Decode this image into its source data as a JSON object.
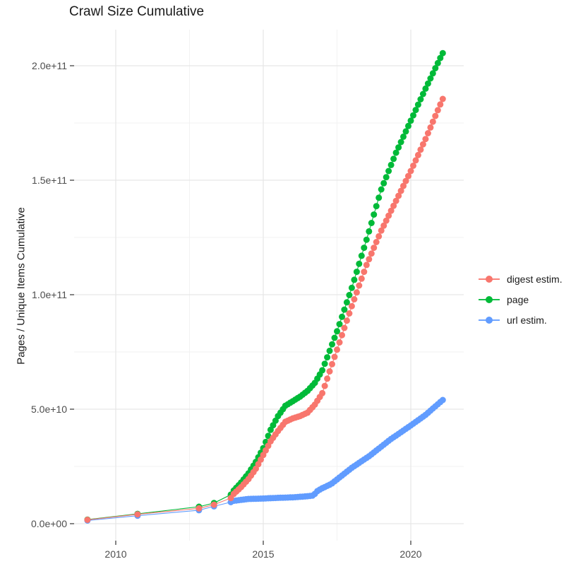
{
  "title": "Crawl Size Cumulative",
  "axes": {
    "y_label": "Pages / Unique Items Cumulative",
    "x_tick_labels": [
      "2010",
      "2015",
      "2020"
    ],
    "x_tick_years": [
      2010,
      2015,
      2020
    ],
    "x_minor_years": [
      2012.5,
      2017.5
    ],
    "y_tick_labels": [
      "0.0e+00",
      "5.0e+10",
      "1.0e+11",
      "1.5e+11",
      "2.0e+11"
    ],
    "y_tick_values_e9": [
      0,
      50,
      100,
      150,
      200
    ],
    "y_minor_values_e9": [
      25,
      75,
      125,
      175
    ]
  },
  "legend": {
    "items": [
      {
        "id": "digest",
        "label": "digest estim.",
        "color": "#F8766D"
      },
      {
        "id": "page",
        "label": "page",
        "color": "#00BA38"
      },
      {
        "id": "url",
        "label": "url estim.",
        "color": "#619CFF"
      }
    ]
  },
  "chart_data": {
    "type": "scatter",
    "title": "Crawl Size Cumulative",
    "xlabel": "",
    "ylabel": "Pages / Unique Items Cumulative",
    "x_unit": "year",
    "y_unit": "pages / unique items (cumulative count)",
    "xlim": [
      2008.6,
      2021.8
    ],
    "ylim": [
      -10000000000.0,
      215000000000.0
    ],
    "grid": true,
    "legend_position": "right",
    "marker": "filled-circle-with-line",
    "sampling": {
      "sparse_years": [
        2009.04,
        2010.74,
        2012.82,
        2013.33,
        2013.9
      ],
      "monthly_from": 2014.0,
      "monthly_to": 2021.085,
      "monthly_step_years": 0.0833333
    },
    "value_scale": "anchors give value in billions (1e9); e.g. 205.5 = 2.055e11",
    "series": [
      {
        "name": "digest estim.",
        "color": "#F8766D",
        "anchors_year_value_e9": [
          [
            2009.04,
            1.7
          ],
          [
            2010.74,
            4.1
          ],
          [
            2012.82,
            6.7
          ],
          [
            2013.33,
            8.3
          ],
          [
            2013.9,
            11.2
          ],
          [
            2014.0,
            13
          ],
          [
            2014.25,
            16
          ],
          [
            2014.5,
            19.5
          ],
          [
            2014.75,
            24
          ],
          [
            2015.0,
            30
          ],
          [
            2015.25,
            36
          ],
          [
            2015.5,
            40.5
          ],
          [
            2015.75,
            44.5
          ],
          [
            2016.0,
            46
          ],
          [
            2016.25,
            47
          ],
          [
            2016.5,
            48.5
          ],
          [
            2016.75,
            52
          ],
          [
            2017.0,
            57
          ],
          [
            2017.5,
            76
          ],
          [
            2018.0,
            95
          ],
          [
            2018.5,
            113
          ],
          [
            2019.0,
            128
          ],
          [
            2019.5,
            141
          ],
          [
            2020.0,
            154
          ],
          [
            2020.5,
            168
          ],
          [
            2021.08,
            185.5
          ]
        ]
      },
      {
        "name": "page",
        "color": "#00BA38",
        "anchors_year_value_e9": [
          [
            2009.04,
            1.8
          ],
          [
            2010.74,
            4.3
          ],
          [
            2012.82,
            7.4
          ],
          [
            2013.33,
            9.0
          ],
          [
            2013.9,
            12.7
          ],
          [
            2014.0,
            14.5
          ],
          [
            2014.25,
            18
          ],
          [
            2014.5,
            22
          ],
          [
            2014.75,
            27
          ],
          [
            2015.0,
            33
          ],
          [
            2015.25,
            41
          ],
          [
            2015.5,
            47
          ],
          [
            2015.75,
            51.5
          ],
          [
            2016.0,
            53.5
          ],
          [
            2016.25,
            55.5
          ],
          [
            2016.5,
            58
          ],
          [
            2016.75,
            61.5
          ],
          [
            2017.0,
            67
          ],
          [
            2017.5,
            84
          ],
          [
            2018.0,
            103
          ],
          [
            2018.5,
            124
          ],
          [
            2019.0,
            146
          ],
          [
            2019.5,
            162
          ],
          [
            2020.0,
            176
          ],
          [
            2020.5,
            190
          ],
          [
            2021.08,
            205.5
          ]
        ]
      },
      {
        "name": "url estim.",
        "color": "#619CFF",
        "anchors_year_value_e9": [
          [
            2009.04,
            1.4
          ],
          [
            2010.74,
            3.5
          ],
          [
            2012.82,
            5.9
          ],
          [
            2013.33,
            7.6
          ],
          [
            2013.9,
            9.4
          ],
          [
            2014.0,
            10
          ],
          [
            2014.5,
            10.8
          ],
          [
            2015.0,
            11
          ],
          [
            2015.5,
            11.3
          ],
          [
            2016.0,
            11.5
          ],
          [
            2016.5,
            12
          ],
          [
            2016.7,
            12.3
          ],
          [
            2016.83,
            14.2
          ],
          [
            2017.0,
            15.5
          ],
          [
            2017.3,
            17.3
          ],
          [
            2018.0,
            24.4
          ],
          [
            2018.6,
            29.6
          ],
          [
            2019.3,
            36.7
          ],
          [
            2020.0,
            42.9
          ],
          [
            2020.5,
            47.5
          ],
          [
            2021.08,
            54
          ]
        ]
      }
    ]
  }
}
